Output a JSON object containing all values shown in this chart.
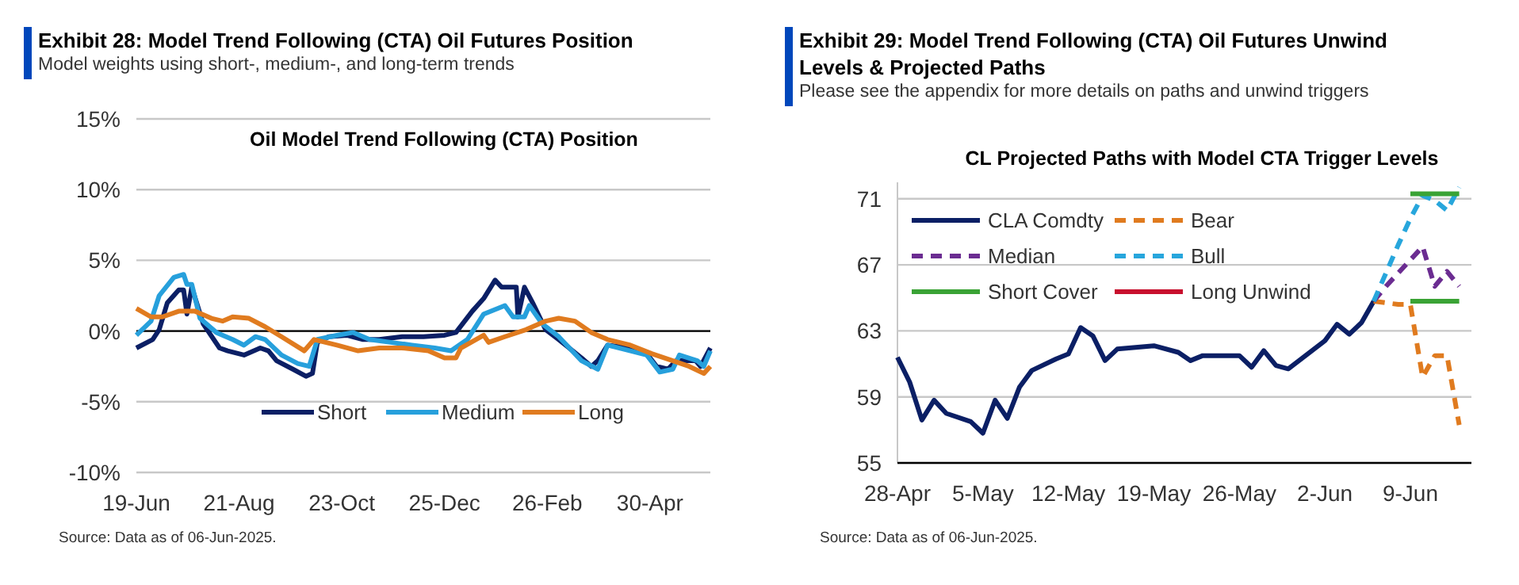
{
  "chart_data": [
    {
      "type": "line",
      "title": "Exhibit 28: Model Trend Following (CTA) Oil Futures Position",
      "subtitle": "Model weights using short-, medium-, and long-term trends",
      "annotations": [
        "Oil Model Trend Following (CTA) Position",
        "Source: Data as of 06-Jun-2025."
      ],
      "xlim": [
        "2024-06-19",
        "2025-06-06"
      ],
      "xticks": [
        {
          "value": "2024-06-19",
          "label": "19-Jun"
        },
        {
          "value": "2024-08-21",
          "label": "21-Aug"
        },
        {
          "value": "2024-10-23",
          "label": "23-Oct"
        },
        {
          "value": "2024-12-25",
          "label": "25-Dec"
        },
        {
          "value": "2025-02-26",
          "label": "26-Feb"
        },
        {
          "value": "2025-04-30",
          "label": "30-Apr"
        }
      ],
      "ylim": [
        -10,
        15
      ],
      "yticks": [
        {
          "value": -10,
          "label": "-10%"
        },
        {
          "value": -5,
          "label": "-5%"
        },
        {
          "value": 0,
          "label": "0%"
        },
        {
          "value": 5,
          "label": "5%"
        },
        {
          "value": 10,
          "label": "10%"
        },
        {
          "value": 15,
          "label": "15%"
        }
      ],
      "grid": "y",
      "legend": "bottom",
      "series": [
        {
          "name": "Short",
          "color": "#0b1f65",
          "x": [
            "2024-06-19",
            "2024-06-29",
            "2024-07-03",
            "2024-07-08",
            "2024-07-15",
            "2024-07-18",
            "2024-07-20",
            "2024-07-23",
            "2024-07-30",
            "2024-08-09",
            "2024-08-14",
            "2024-08-24",
            "2024-09-03",
            "2024-09-08",
            "2024-09-13",
            "2024-09-23",
            "2024-10-01",
            "2024-10-05",
            "2024-10-08",
            "2024-10-15",
            "2024-10-26",
            "2024-11-05",
            "2024-11-15",
            "2024-11-29",
            "2024-12-12",
            "2024-12-25",
            "2025-01-01",
            "2025-01-11",
            "2025-01-18",
            "2025-01-25",
            "2025-01-29",
            "2025-02-07",
            "2025-02-08",
            "2025-02-12",
            "2025-02-17",
            "2025-02-25",
            "2025-03-05",
            "2025-03-19",
            "2025-03-25",
            "2025-03-29",
            "2025-04-04",
            "2025-04-18",
            "2025-04-28",
            "2025-05-04",
            "2025-05-11",
            "2025-05-16",
            "2025-05-28",
            "2025-05-31",
            "2025-06-06"
          ],
          "values": [
            -1.2,
            -0.6,
            0.1,
            2.0,
            2.9,
            2.9,
            1.2,
            3.1,
            0.5,
            -1.2,
            -1.4,
            -1.7,
            -1.2,
            -1.4,
            -2.1,
            -2.7,
            -3.2,
            -3.0,
            -0.8,
            -0.4,
            -0.3,
            -0.6,
            -0.6,
            -0.4,
            -0.4,
            -0.3,
            -0.1,
            1.4,
            2.3,
            3.6,
            3.1,
            3.1,
            1.0,
            3.1,
            2.0,
            0.1,
            -0.6,
            -1.9,
            -2.5,
            -2.1,
            -1.0,
            -1.2,
            -1.6,
            -2.5,
            -2.7,
            -2.1,
            -2.1,
            -2.5,
            -1.2
          ]
        },
        {
          "name": "Medium",
          "color": "#27a0dc",
          "x": [
            "2024-06-19",
            "2024-06-28",
            "2024-07-03",
            "2024-07-12",
            "2024-07-18",
            "2024-07-20",
            "2024-07-23",
            "2024-07-28",
            "2024-08-07",
            "2024-08-17",
            "2024-08-24",
            "2024-08-31",
            "2024-09-06",
            "2024-09-16",
            "2024-09-26",
            "2024-10-03",
            "2024-10-08",
            "2024-10-20",
            "2024-10-30",
            "2024-11-09",
            "2024-11-22",
            "2024-12-05",
            "2024-12-19",
            "2024-12-29",
            "2025-01-08",
            "2025-01-18",
            "2025-01-31",
            "2025-02-05",
            "2025-02-12",
            "2025-02-15",
            "2025-02-23",
            "2025-03-05",
            "2025-03-19",
            "2025-03-29",
            "2025-04-04",
            "2025-04-18",
            "2025-04-28",
            "2025-05-06",
            "2025-05-14",
            "2025-05-18",
            "2025-05-29",
            "2025-06-02",
            "2025-06-06"
          ],
          "values": [
            -0.3,
            0.7,
            2.5,
            3.8,
            4.0,
            3.3,
            3.3,
            0.9,
            -0.1,
            -0.6,
            -1.0,
            -0.4,
            -0.6,
            -1.7,
            -2.3,
            -2.5,
            -0.6,
            -0.3,
            -0.1,
            -0.6,
            -0.8,
            -1.0,
            -1.2,
            -1.4,
            -0.6,
            1.2,
            1.8,
            1.0,
            1.0,
            1.8,
            0.5,
            -0.4,
            -2.1,
            -2.7,
            -1.0,
            -1.4,
            -1.7,
            -2.9,
            -2.7,
            -1.7,
            -2.1,
            -2.5,
            -1.4
          ]
        },
        {
          "name": "Long",
          "color": "#e07b1f",
          "x": [
            "2024-06-19",
            "2024-06-28",
            "2024-07-05",
            "2024-07-15",
            "2024-07-25",
            "2024-08-04",
            "2024-08-11",
            "2024-08-17",
            "2024-08-27",
            "2024-09-06",
            "2024-09-16",
            "2024-09-30",
            "2024-10-06",
            "2024-10-20",
            "2024-11-02",
            "2024-11-15",
            "2024-11-29",
            "2024-12-15",
            "2024-12-25",
            "2025-01-01",
            "2025-01-04",
            "2025-01-18",
            "2025-01-21",
            "2025-01-31",
            "2025-02-13",
            "2025-02-25",
            "2025-03-05",
            "2025-03-15",
            "2025-03-25",
            "2025-04-04",
            "2025-04-18",
            "2025-05-01",
            "2025-05-14",
            "2025-05-24",
            "2025-06-02",
            "2025-06-06"
          ],
          "values": [
            1.6,
            1.0,
            1.0,
            1.4,
            1.4,
            0.9,
            0.7,
            1.0,
            0.9,
            0.3,
            -0.4,
            -1.4,
            -0.6,
            -1.0,
            -1.4,
            -1.2,
            -1.2,
            -1.4,
            -1.9,
            -1.9,
            -1.2,
            -0.3,
            -0.8,
            -0.4,
            0.1,
            0.7,
            0.9,
            0.7,
            -0.1,
            -0.6,
            -1.0,
            -1.6,
            -2.1,
            -2.5,
            -3.0,
            -2.5
          ]
        }
      ]
    },
    {
      "type": "line",
      "title": "Exhibit 29: Model Trend Following (CTA) Oil Futures Unwind Levels & Projected Paths",
      "subtitle": "Please see the appendix for more details on paths and unwind triggers",
      "annotations": [
        "CL Projected Paths with Model CTA Trigger Levels",
        "Source: Data as of 06-Jun-2025."
      ],
      "xlim": [
        "2025-04-28",
        "2025-06-14"
      ],
      "xticks": [
        {
          "value": "2025-04-28",
          "label": "28-Apr"
        },
        {
          "value": "2025-05-05",
          "label": "5-May"
        },
        {
          "value": "2025-05-12",
          "label": "12-May"
        },
        {
          "value": "2025-05-19",
          "label": "19-May"
        },
        {
          "value": "2025-05-26",
          "label": "26-May"
        },
        {
          "value": "2025-06-02",
          "label": "2-Jun"
        },
        {
          "value": "2025-06-09",
          "label": "9-Jun"
        }
      ],
      "ylim": [
        55,
        72
      ],
      "yticks": [
        55,
        59,
        63,
        67,
        71
      ],
      "grid": "y",
      "legend": "top left",
      "series": [
        {
          "name": "CLA Comdty",
          "color": "#0b1f65",
          "x": [
            "2025-04-28",
            "2025-04-29",
            "2025-04-30",
            "2025-05-01",
            "2025-05-02",
            "2025-05-04",
            "2025-05-05",
            "2025-05-06",
            "2025-05-07",
            "2025-05-08",
            "2025-05-09",
            "2025-05-11",
            "2025-05-12",
            "2025-05-13",
            "2025-05-14",
            "2025-05-15",
            "2025-05-16",
            "2025-05-19",
            "2025-05-21",
            "2025-05-22",
            "2025-05-23",
            "2025-05-26",
            "2025-05-27",
            "2025-05-28",
            "2025-05-29",
            "2025-05-30",
            "2025-06-02",
            "2025-06-03",
            "2025-06-04",
            "2025-06-05",
            "2025-06-06"
          ],
          "values": [
            61.4,
            59.9,
            57.6,
            58.8,
            58.0,
            57.5,
            56.8,
            58.8,
            57.7,
            59.6,
            60.6,
            61.3,
            61.6,
            63.2,
            62.7,
            61.2,
            61.9,
            62.1,
            61.7,
            61.2,
            61.5,
            61.5,
            60.8,
            61.8,
            60.9,
            60.7,
            62.4,
            63.4,
            62.8,
            63.5,
            64.8
          ]
        },
        {
          "name": "Bear",
          "color": "#e07b1f",
          "line_style": "dashed",
          "x": [
            "2025-06-06",
            "2025-06-07",
            "2025-06-08",
            "2025-06-09",
            "2025-06-10",
            "2025-06-11",
            "2025-06-12",
            "2025-06-13"
          ],
          "values": [
            64.8,
            64.7,
            64.6,
            64.6,
            60.2,
            61.5,
            61.5,
            57.3
          ]
        },
        {
          "name": "Median",
          "color": "#6b2c91",
          "line_style": "dashed",
          "x": [
            "2025-06-06",
            "2025-06-07",
            "2025-06-08",
            "2025-06-09",
            "2025-06-10",
            "2025-06-11",
            "2025-06-12",
            "2025-06-13"
          ],
          "values": [
            64.8,
            65.7,
            66.5,
            67.3,
            68.1,
            65.7,
            66.6,
            65.7
          ]
        },
        {
          "name": "Bull",
          "color": "#27a6dc",
          "line_style": "dashed",
          "x": [
            "2025-06-06",
            "2025-06-07",
            "2025-06-08",
            "2025-06-09",
            "2025-06-10",
            "2025-06-11",
            "2025-06-12",
            "2025-06-13"
          ],
          "values": [
            64.8,
            66.5,
            68.2,
            69.8,
            71.2,
            70.9,
            70.3,
            71.7
          ]
        },
        {
          "name": "Short Cover",
          "color": "#3aa335",
          "x": [
            "2025-06-09",
            "2025-06-13"
          ],
          "values": [
            71.3,
            71.3
          ]
        },
        {
          "color": "#3aa335",
          "x": [
            "2025-06-09",
            "2025-06-13"
          ],
          "values": [
            64.8,
            64.8
          ]
        },
        {
          "name": "Long Unwind",
          "color": "#c8102e"
        }
      ]
    }
  ]
}
